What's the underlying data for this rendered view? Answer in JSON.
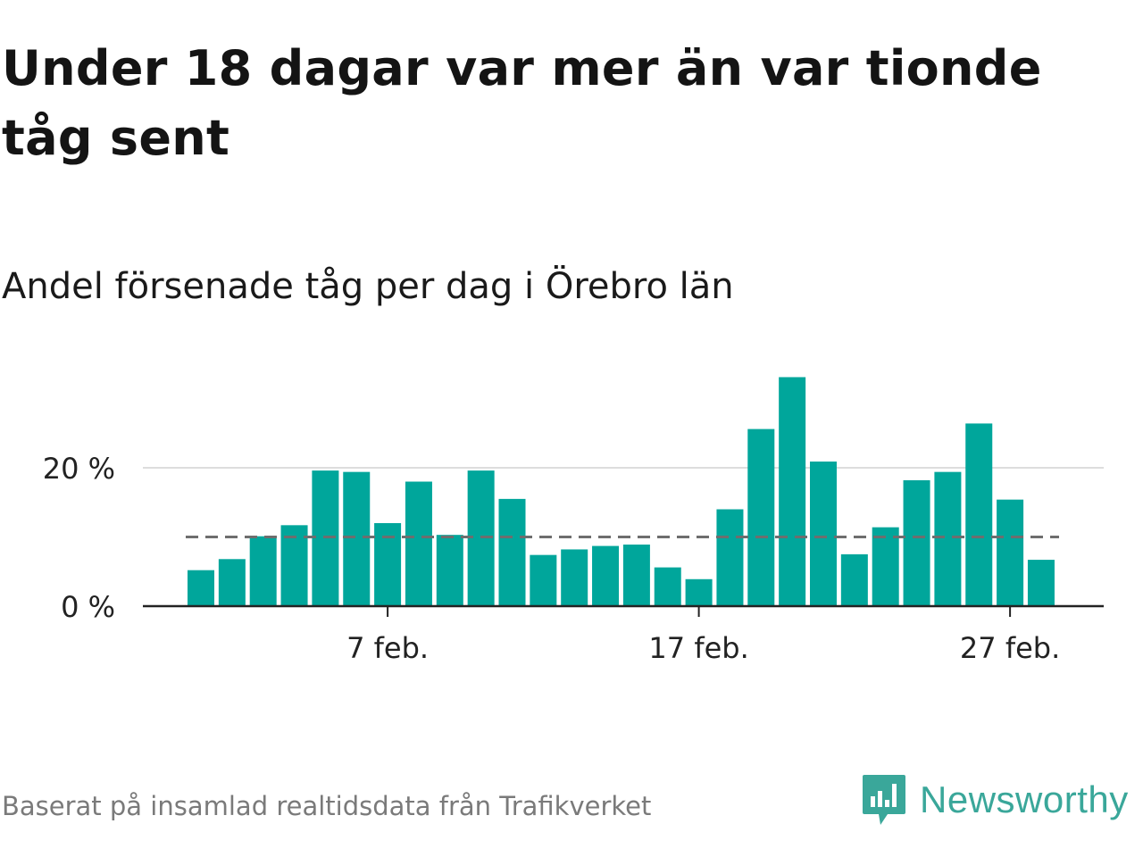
{
  "header": {
    "title": "Under 18 dagar var mer än var tionde tåg sent",
    "subtitle": "Andel försenade tåg per dag i Örebro län"
  },
  "footer": {
    "source": "Baserat på insamlad realtidsdata från Trafikverket",
    "brand": "Newsworthy",
    "brand_icon": "newsworthy-logo-icon"
  },
  "colors": {
    "bar": "#00a69b",
    "reference_line": "#6e6e6e",
    "grid": "#dddddd",
    "axis": "#222222",
    "brand": "#3aa79a"
  },
  "chart_data": {
    "type": "bar",
    "x": [
      "1 feb.",
      "2 feb.",
      "3 feb.",
      "4 feb.",
      "5 feb.",
      "6 feb.",
      "7 feb.",
      "8 feb.",
      "9 feb.",
      "10 feb.",
      "11 feb.",
      "12 feb.",
      "13 feb.",
      "14 feb.",
      "15 feb.",
      "16 feb.",
      "17 feb.",
      "18 feb.",
      "19 feb.",
      "20 feb.",
      "21 feb.",
      "22 feb.",
      "23 feb.",
      "24 feb.",
      "25 feb.",
      "26 feb.",
      "27 feb.",
      "28 feb."
    ],
    "values": [
      5.2,
      6.8,
      10.1,
      11.7,
      19.6,
      19.4,
      12.0,
      18.0,
      10.3,
      19.6,
      15.5,
      7.4,
      8.2,
      8.7,
      8.9,
      5.6,
      3.9,
      14.0,
      25.6,
      33.1,
      20.9,
      7.5,
      11.4,
      18.2,
      19.4,
      26.4,
      15.4,
      6.7
    ],
    "xticks": [
      "7 feb.",
      "17 feb.",
      "27 feb."
    ],
    "yticks": [
      "0 %",
      "20 %"
    ],
    "ytick_values": [
      0,
      20
    ],
    "ylim": [
      0,
      36
    ],
    "reference_value": 10,
    "grid": true
  }
}
